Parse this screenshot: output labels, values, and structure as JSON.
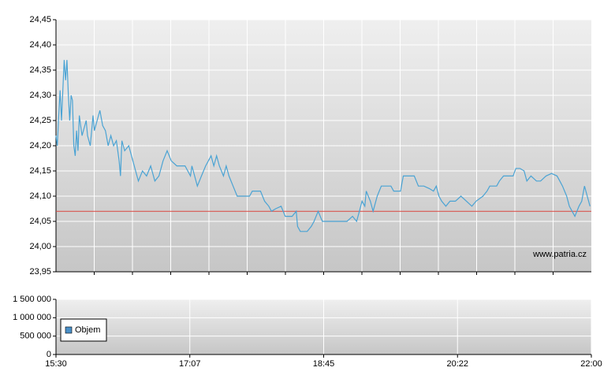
{
  "chart_data": [
    {
      "type": "line",
      "xlim": [
        930,
        1320
      ],
      "ylim": [
        23.95,
        24.45
      ],
      "yticks": [
        {
          "value": 23.95,
          "label": "23,95"
        },
        {
          "value": 24.0,
          "label": "24,00"
        },
        {
          "value": 24.05,
          "label": "24,05"
        },
        {
          "value": 24.1,
          "label": "24,10"
        },
        {
          "value": 24.15,
          "label": "24,15"
        },
        {
          "value": 24.2,
          "label": "24,20"
        },
        {
          "value": 24.25,
          "label": "24,25"
        },
        {
          "value": 24.3,
          "label": "24,30"
        },
        {
          "value": 24.35,
          "label": "24,35"
        },
        {
          "value": 24.4,
          "label": "24,40"
        },
        {
          "value": 24.45,
          "label": "24,45"
        }
      ],
      "grid": true,
      "reference_line": {
        "value": 24.07,
        "color": "#d9453f"
      },
      "watermark": "www.patria.cz",
      "x": [
        930,
        931,
        932,
        933,
        934,
        935,
        936,
        937,
        938,
        939,
        940,
        941,
        942,
        943,
        944,
        945,
        946,
        947,
        948,
        949,
        950,
        952,
        953,
        955,
        957,
        958,
        960,
        962,
        964,
        966,
        968,
        970,
        972,
        974,
        976,
        977,
        978,
        980,
        983,
        985,
        988,
        990,
        993,
        996,
        999,
        1002,
        1005,
        1008,
        1011,
        1014,
        1018,
        1024,
        1028,
        1029,
        1033,
        1036,
        1039,
        1041,
        1043,
        1045,
        1047,
        1049,
        1052,
        1054,
        1056,
        1059,
        1062,
        1067,
        1071,
        1073,
        1079,
        1082,
        1085,
        1087,
        1090,
        1094,
        1097,
        1102,
        1105,
        1106,
        1108,
        1113,
        1116,
        1118,
        1121,
        1124,
        1130,
        1142,
        1146,
        1149,
        1151,
        1153,
        1155,
        1156,
        1159,
        1161,
        1164,
        1167,
        1174,
        1176,
        1181,
        1183,
        1191,
        1194,
        1198,
        1202,
        1205,
        1207,
        1209,
        1211,
        1214,
        1217,
        1221,
        1225,
        1229,
        1233,
        1236,
        1241,
        1244,
        1246,
        1251,
        1253,
        1256,
        1263,
        1265,
        1268,
        1271,
        1273,
        1276,
        1280,
        1283,
        1287,
        1291,
        1295,
        1297,
        1299,
        1302,
        1304,
        1306,
        1308,
        1311,
        1313,
        1315,
        1317,
        1319
      ],
      "series": [
        {
          "color": "#4aa3d4",
          "values": [
            24.22,
            24.2,
            24.26,
            24.31,
            24.25,
            24.31,
            24.37,
            24.33,
            24.37,
            24.3,
            24.25,
            24.3,
            24.29,
            24.2,
            24.18,
            24.23,
            24.19,
            24.26,
            24.24,
            24.22,
            24.23,
            24.25,
            24.22,
            24.2,
            24.26,
            24.23,
            24.25,
            24.27,
            24.24,
            24.23,
            24.2,
            24.22,
            24.2,
            24.21,
            24.17,
            24.14,
            24.21,
            24.19,
            24.2,
            24.18,
            24.15,
            24.13,
            24.15,
            24.14,
            24.16,
            24.13,
            24.14,
            24.17,
            24.19,
            24.17,
            24.16,
            24.16,
            24.14,
            24.16,
            24.12,
            24.14,
            24.16,
            24.17,
            24.18,
            24.16,
            24.18,
            24.16,
            24.14,
            24.16,
            24.14,
            24.12,
            24.1,
            24.1,
            24.1,
            24.11,
            24.11,
            24.09,
            24.08,
            24.07,
            24.075,
            24.08,
            24.06,
            24.06,
            24.07,
            24.04,
            24.03,
            24.03,
            24.04,
            24.05,
            24.07,
            24.05,
            24.05,
            24.05,
            24.06,
            24.05,
            24.07,
            24.09,
            24.08,
            24.11,
            24.09,
            24.07,
            24.1,
            24.12,
            24.12,
            24.11,
            24.11,
            24.14,
            24.14,
            24.12,
            24.12,
            24.115,
            24.11,
            24.12,
            24.1,
            24.09,
            24.08,
            24.09,
            24.09,
            24.1,
            24.09,
            24.08,
            24.09,
            24.1,
            24.11,
            24.12,
            24.12,
            24.13,
            24.14,
            24.14,
            24.155,
            24.155,
            24.15,
            24.13,
            24.14,
            24.13,
            24.13,
            24.14,
            24.145,
            24.14,
            24.13,
            24.12,
            24.1,
            24.08,
            24.07,
            24.06,
            24.08,
            24.09,
            24.12,
            24.1,
            24.08
          ]
        }
      ]
    },
    {
      "type": "bar",
      "xlim": [
        930,
        1320
      ],
      "xticks": [
        {
          "value": 930,
          "label": "15:30"
        },
        {
          "value": 1027.5,
          "label": "17:07"
        },
        {
          "value": 1125,
          "label": "18:45"
        },
        {
          "value": 1222.5,
          "label": "20:22"
        },
        {
          "value": 1320,
          "label": "22:00"
        }
      ],
      "ylim": [
        0,
        1500000
      ],
      "yticks": [
        0,
        {
          "value": 500000,
          "label": "500 000"
        },
        {
          "value": 1000000,
          "label": "1 000 000"
        },
        {
          "value": 1500000,
          "label": "1 500 000"
        }
      ],
      "grid": true,
      "legend": "upper left",
      "series": [
        {
          "name": "Objem",
          "color": "#4a90c8"
        }
      ]
    }
  ]
}
